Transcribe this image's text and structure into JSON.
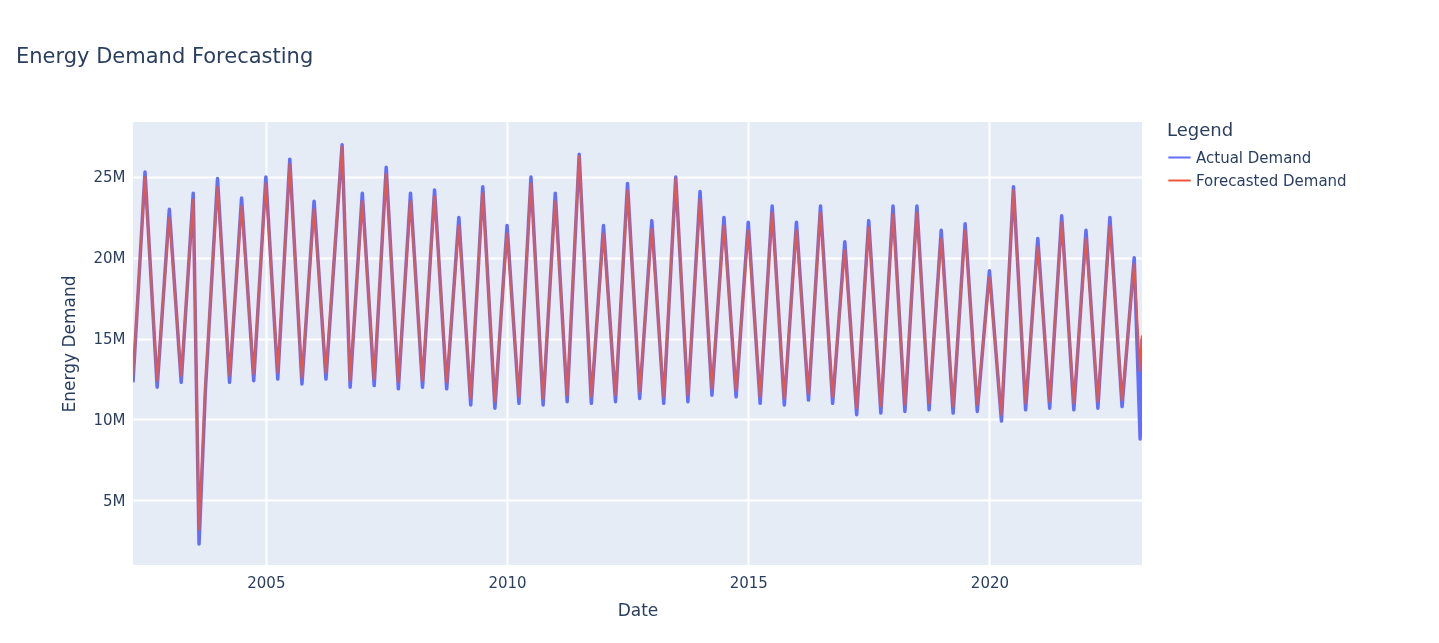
{
  "chart_data": {
    "type": "line",
    "title": "Energy Demand Forecasting",
    "xlabel": "Date",
    "ylabel": "Energy Demand",
    "legend_title": "Legend",
    "legend": "top right",
    "grid": true,
    "line_style": "solid",
    "x": [
      "2002-04",
      "2002-07",
      "2002-10",
      "2003-01",
      "2003-04",
      "2003-07",
      "2003-08-14",
      "2003-10",
      "2004-01",
      "2004-04",
      "2004-07",
      "2004-10",
      "2005-01",
      "2005-04",
      "2005-07",
      "2005-10",
      "2006-01",
      "2006-04",
      "2006-08",
      "2006-10",
      "2007-01",
      "2007-04",
      "2007-07",
      "2007-10",
      "2008-01",
      "2008-04",
      "2008-07",
      "2008-10",
      "2009-01",
      "2009-04",
      "2009-07",
      "2009-10",
      "2010-01",
      "2010-04",
      "2010-07",
      "2010-10",
      "2011-01",
      "2011-04",
      "2011-07",
      "2011-10",
      "2012-01",
      "2012-04",
      "2012-07",
      "2012-10",
      "2013-01",
      "2013-04",
      "2013-07",
      "2013-10",
      "2014-01",
      "2014-04",
      "2014-07",
      "2014-10",
      "2015-01",
      "2015-04",
      "2015-07",
      "2015-10",
      "2016-01",
      "2016-04",
      "2016-07",
      "2016-10",
      "2017-01",
      "2017-04",
      "2017-07",
      "2017-10",
      "2018-01",
      "2018-04",
      "2018-07",
      "2018-10",
      "2019-01",
      "2019-04",
      "2019-07",
      "2019-10",
      "2020-01",
      "2020-04",
      "2020-07",
      "2020-10",
      "2021-01",
      "2021-04",
      "2021-07",
      "2021-10",
      "2022-01",
      "2022-04",
      "2022-07",
      "2022-10",
      "2023-01",
      "2023-02-15",
      "2023-03"
    ],
    "series": [
      {
        "name": "Actual Demand",
        "color": "#636efa",
        "values": [
          12300000,
          25300000,
          12000000,
          23000000,
          12300000,
          24000000,
          2300000,
          11800000,
          24900000,
          12300000,
          23700000,
          12400000,
          25000000,
          12500000,
          26100000,
          12200000,
          23500000,
          12500000,
          27000000,
          12000000,
          24000000,
          12100000,
          25600000,
          11900000,
          24000000,
          12000000,
          24200000,
          11900000,
          22500000,
          10900000,
          24400000,
          10700000,
          22000000,
          11000000,
          25000000,
          10900000,
          24000000,
          11100000,
          26400000,
          11000000,
          22000000,
          11100000,
          24600000,
          11300000,
          22300000,
          11000000,
          25000000,
          11100000,
          24100000,
          11500000,
          22500000,
          11400000,
          22200000,
          11000000,
          23200000,
          10900000,
          22200000,
          11200000,
          23200000,
          11000000,
          21000000,
          10300000,
          22300000,
          10400000,
          23200000,
          10500000,
          23200000,
          10600000,
          21700000,
          10400000,
          22100000,
          10500000,
          19200000,
          9900000,
          24400000,
          10600000,
          21200000,
          10700000,
          22600000,
          10600000,
          21700000,
          10700000,
          22500000,
          10800000,
          20000000,
          8800000,
          15000000
        ]
      },
      {
        "name": "Forecasted Demand",
        "color": "#ef553b",
        "values": [
          12700000,
          25000000,
          12400000,
          22500000,
          12700000,
          23600000,
          3200000,
          12200000,
          24400000,
          12700000,
          23200000,
          12800000,
          24600000,
          12900000,
          25800000,
          12600000,
          23000000,
          12900000,
          26900000,
          12400000,
          23500000,
          12500000,
          25200000,
          12300000,
          23500000,
          12400000,
          23800000,
          12300000,
          22000000,
          11300000,
          24000000,
          11100000,
          21500000,
          11400000,
          24600000,
          11300000,
          23500000,
          11500000,
          26300000,
          11400000,
          21500000,
          11500000,
          24200000,
          11700000,
          21800000,
          11400000,
          24900000,
          11500000,
          23600000,
          11900000,
          22000000,
          11800000,
          21700000,
          11400000,
          22800000,
          11300000,
          21700000,
          11600000,
          22800000,
          11400000,
          20500000,
          10700000,
          21900000,
          10800000,
          22700000,
          10900000,
          22800000,
          11000000,
          21200000,
          10800000,
          21700000,
          10900000,
          18800000,
          10300000,
          24200000,
          11000000,
          20700000,
          11100000,
          22200000,
          11000000,
          21200000,
          11100000,
          22000000,
          11200000,
          19600000,
          13000000,
          15200000
        ]
      }
    ],
    "xlim": [
      "2002-04",
      "2023-03"
    ],
    "xticks": [
      "2005",
      "2010",
      "2015",
      "2020"
    ],
    "ylim": [
      1000000,
      28400000
    ],
    "yticks": [
      {
        "value": 5000000,
        "label": "5M"
      },
      {
        "value": 10000000,
        "label": "10M"
      },
      {
        "value": 15000000,
        "label": "15M"
      },
      {
        "value": 20000000,
        "label": "20M"
      },
      {
        "value": 25000000,
        "label": "25M"
      }
    ]
  }
}
